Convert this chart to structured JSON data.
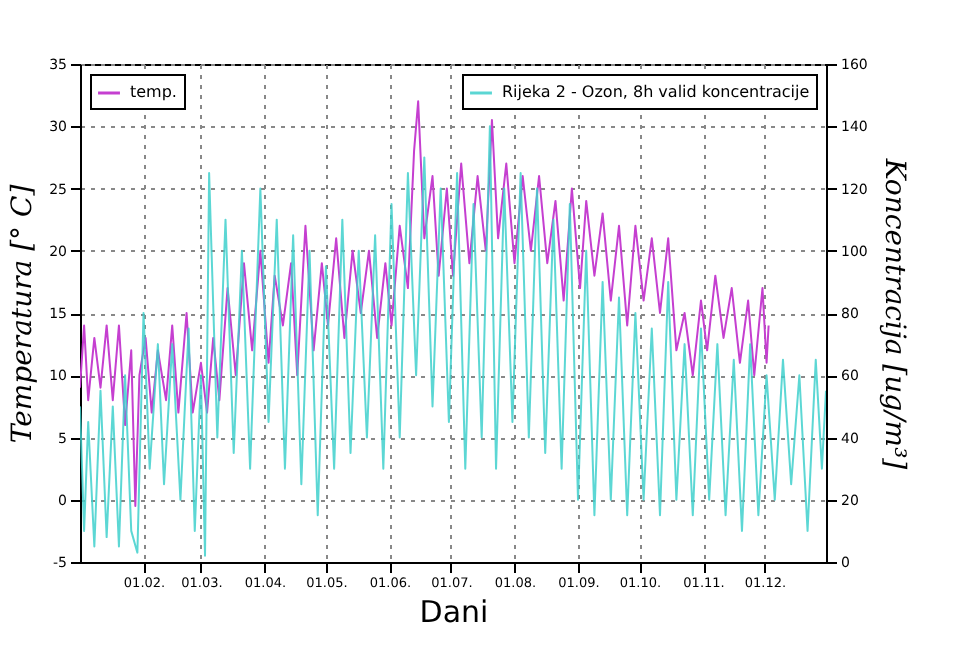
{
  "chart_data": {
    "type": "line",
    "xlabel": "Dani",
    "ylabel": "Temperatura [° C]",
    "y2label": "Koncentracija [ug/m³]",
    "xlim": [
      "--01-01",
      "--12-31"
    ],
    "xticks": [
      {
        "value": "--02-01",
        "label": "01.02."
      },
      {
        "value": "--03-01",
        "label": "01.03."
      },
      {
        "value": "--04-01",
        "label": "01.04."
      },
      {
        "value": "--05-01",
        "label": "01.05."
      },
      {
        "value": "--06-01",
        "label": "01.06."
      },
      {
        "value": "--07-01",
        "label": "01.07."
      },
      {
        "value": "--08-01",
        "label": "01.08."
      },
      {
        "value": "--09-01",
        "label": "01.09."
      },
      {
        "value": "--10-01",
        "label": "01.10."
      },
      {
        "value": "--11-01",
        "label": "01.11."
      },
      {
        "value": "--12-01",
        "label": "01.12."
      }
    ],
    "ylim": [
      -5,
      35
    ],
    "yticks": [
      -5,
      0,
      5,
      10,
      15,
      20,
      25,
      30,
      35
    ],
    "y2lim": [
      0,
      160
    ],
    "y2ticks": [
      0,
      20,
      40,
      60,
      80,
      100,
      120,
      140,
      160
    ],
    "grid": true,
    "legend": "top",
    "line_style": "solid",
    "marker": "none",
    "series": [
      {
        "name": "temp.",
        "color": "#c53fd0",
        "x": [
          "--01-01",
          "--01-03",
          "--01-05",
          "--01-08",
          "--01-11",
          "--01-14",
          "--01-17",
          "--01-20",
          "--01-23",
          "--01-26",
          "--01-28",
          "--01-30",
          "--02-02",
          "--02-05",
          "--02-08",
          "--02-12",
          "--02-15",
          "--02-18",
          "--02-22",
          "--02-25",
          "--03-01",
          "--03-04",
          "--03-07",
          "--03-10",
          "--03-14",
          "--03-18",
          "--03-22",
          "--03-26",
          "--03-30",
          "--04-03",
          "--04-06",
          "--04-10",
          "--04-14",
          "--04-17",
          "--04-21",
          "--04-25",
          "--04-29",
          "--05-02",
          "--05-06",
          "--05-10",
          "--05-14",
          "--05-18",
          "--05-22",
          "--05-26",
          "--05-30",
          "--06-02",
          "--06-06",
          "--06-10",
          "--06-13",
          "--06-15",
          "--06-18",
          "--06-22",
          "--06-25",
          "--06-29",
          "--07-02",
          "--07-06",
          "--07-10",
          "--07-14",
          "--07-18",
          "--07-21",
          "--07-24",
          "--07-28",
          "--08-01",
          "--08-05",
          "--08-09",
          "--08-13",
          "--08-17",
          "--08-21",
          "--08-25",
          "--08-29",
          "--09-02",
          "--09-05",
          "--09-09",
          "--09-13",
          "--09-17",
          "--09-21",
          "--09-25",
          "--09-29",
          "--10-03",
          "--10-07",
          "--10-11",
          "--10-15",
          "--10-19",
          "--10-23",
          "--10-27",
          "--10-31",
          "--11-03",
          "--11-07",
          "--11-11",
          "--11-15",
          "--11-19",
          "--11-23",
          "--11-26",
          "--11-30",
          "--12-02",
          "--12-03"
        ],
        "values": [
          9,
          14,
          8,
          13,
          9,
          14,
          8,
          14,
          6,
          12,
          -0.5,
          10,
          13,
          7,
          12,
          8,
          14,
          7,
          15,
          7,
          11,
          7,
          13,
          8,
          17,
          10,
          19,
          12,
          20,
          11,
          18,
          14,
          19,
          10,
          22,
          12,
          19,
          14,
          21,
          13,
          20,
          15,
          20,
          13,
          19,
          14,
          22,
          17,
          28,
          32,
          21,
          26,
          18,
          25,
          18,
          27,
          19,
          26,
          20,
          30.5,
          21,
          27,
          19,
          26,
          20,
          26,
          19,
          24,
          16,
          25,
          17,
          24,
          18,
          23,
          16,
          22,
          14,
          22,
          16,
          21,
          15,
          21,
          12,
          15,
          10,
          16,
          12,
          18,
          13,
          17,
          11,
          16,
          10,
          17,
          11,
          14
        ]
      },
      {
        "name": "Rijeka 2 - Ozon, 8h valid koncentracije",
        "color": "#3fd0cc",
        "axis": "y2",
        "x": [
          "--01-01",
          "--01-03",
          "--01-05",
          "--01-08",
          "--01-11",
          "--01-14",
          "--01-17",
          "--01-20",
          "--01-23",
          "--01-26",
          "--01-29",
          "--02-01",
          "--02-04",
          "--02-08",
          "--02-11",
          "--02-15",
          "--02-19",
          "--02-23",
          "--02-26",
          "--03-01",
          "--03-03",
          "--03-05",
          "--03-09",
          "--03-13",
          "--03-17",
          "--03-21",
          "--03-25",
          "--03-30",
          "--04-03",
          "--04-07",
          "--04-11",
          "--04-15",
          "--04-19",
          "--04-23",
          "--04-27",
          "--05-01",
          "--05-05",
          "--05-09",
          "--05-13",
          "--05-17",
          "--05-21",
          "--05-25",
          "--05-29",
          "--06-02",
          "--06-06",
          "--06-10",
          "--06-14",
          "--06-18",
          "--06-22",
          "--06-26",
          "--06-30",
          "--07-04",
          "--07-08",
          "--07-12",
          "--07-16",
          "--07-20",
          "--07-23",
          "--07-27",
          "--07-31",
          "--08-04",
          "--08-08",
          "--08-12",
          "--08-16",
          "--08-20",
          "--08-24",
          "--08-28",
          "--09-01",
          "--09-05",
          "--09-09",
          "--09-13",
          "--09-17",
          "--09-21",
          "--09-25",
          "--09-29",
          "--10-03",
          "--10-07",
          "--10-11",
          "--10-15",
          "--10-19",
          "--10-23",
          "--10-27",
          "--10-31",
          "--11-04",
          "--11-08",
          "--11-12",
          "--11-16",
          "--11-20",
          "--11-24",
          "--11-28",
          "--12-02",
          "--12-06",
          "--12-10",
          "--12-14",
          "--12-18",
          "--12-22",
          "--12-26",
          "--12-29",
          "--12-31"
        ],
        "values": [
          50,
          10,
          45,
          5,
          55,
          8,
          50,
          5,
          60,
          10,
          3,
          80,
          30,
          70,
          25,
          70,
          20,
          75,
          10,
          60,
          2,
          125,
          40,
          110,
          35,
          100,
          30,
          120,
          45,
          110,
          30,
          105,
          25,
          100,
          15,
          95,
          30,
          110,
          35,
          100,
          40,
          105,
          30,
          115,
          40,
          125,
          60,
          130,
          50,
          120,
          45,
          125,
          30,
          115,
          40,
          140,
          30,
          120,
          45,
          125,
          40,
          120,
          35,
          110,
          30,
          115,
          20,
          100,
          15,
          90,
          20,
          85,
          15,
          80,
          20,
          75,
          15,
          90,
          20,
          70,
          15,
          75,
          20,
          70,
          15,
          65,
          10,
          70,
          15,
          60,
          20,
          65,
          25,
          60,
          10,
          65,
          30,
          55
        ]
      }
    ]
  }
}
